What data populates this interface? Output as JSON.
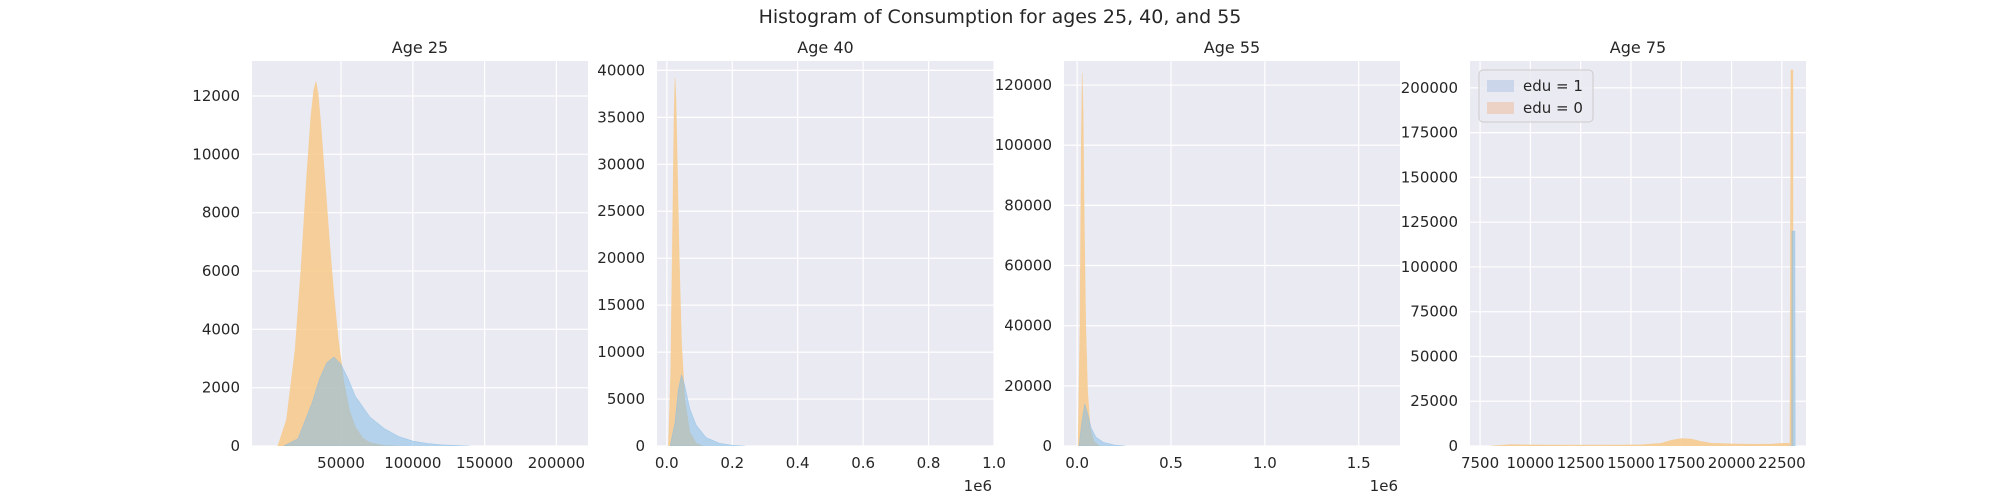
{
  "figure": {
    "title": "Histogram of Consumption for ages 25, 40, and 55",
    "background": "#ffffff",
    "axes_facecolor": "#eaeaf2",
    "grid_color": "#ffffff"
  },
  "legend": {
    "placement": "upper-left",
    "entries": [
      {
        "label": "edu = 1",
        "color": "#b8c8e6"
      },
      {
        "label": "edu = 0",
        "color": "#ecc2a6"
      }
    ]
  },
  "chart_data": [
    {
      "type": "bar",
      "chart_subtype": "overlaid-histogram",
      "title": "Age 25",
      "xlim": [
        -12000,
        222000
      ],
      "ylim": [
        0,
        13200
      ],
      "xticks": [
        50000,
        100000,
        150000,
        200000
      ],
      "xtick_labels": [
        "50000",
        "100000",
        "150000",
        "200000"
      ],
      "yticks": [
        0,
        2000,
        4000,
        6000,
        8000,
        10000,
        12000
      ],
      "ytick_labels": [
        "0",
        "2000",
        "4000",
        "6000",
        "8000",
        "10000",
        "12000"
      ],
      "offset_label": "",
      "grid": true,
      "series": [
        {
          "name": "edu = 1",
          "color": "#87bde6",
          "x": [
            10000,
            20000,
            30000,
            35000,
            40000,
            45000,
            50000,
            55000,
            60000,
            70000,
            80000,
            90000,
            100000,
            110000,
            120000,
            140000
          ],
          "y": [
            0,
            250,
            1500,
            2300,
            2850,
            3050,
            2800,
            2300,
            1700,
            1000,
            600,
            330,
            170,
            90,
            40,
            0
          ]
        },
        {
          "name": "edu = 0",
          "color": "#f7c98a",
          "x": [
            6000,
            12000,
            18000,
            22000,
            26000,
            29000,
            31000,
            32500,
            34000,
            36000,
            39000,
            42000,
            45000,
            48000,
            52000,
            56000,
            60000,
            65000,
            70000,
            80000,
            90000
          ],
          "y": [
            0,
            900,
            3300,
            6000,
            9200,
            11300,
            12200,
            12500,
            12100,
            11000,
            9000,
            7000,
            5200,
            3700,
            2200,
            1200,
            650,
            280,
            120,
            20,
            0
          ]
        }
      ]
    },
    {
      "type": "bar",
      "chart_subtype": "overlaid-histogram",
      "title": "Age 40",
      "xlim": [
        -30000,
        1000000
      ],
      "ylim": [
        0,
        41000
      ],
      "xticks": [
        0,
        200000,
        400000,
        600000,
        800000,
        1000000
      ],
      "xtick_labels": [
        "0.0",
        "0.2",
        "0.4",
        "0.6",
        "0.8",
        "1.0"
      ],
      "yticks": [
        0,
        5000,
        10000,
        15000,
        20000,
        25000,
        30000,
        35000,
        40000
      ],
      "ytick_labels": [
        "0",
        "5000",
        "10000",
        "15000",
        "20000",
        "25000",
        "30000",
        "35000",
        "40000"
      ],
      "offset_label": "1e6",
      "grid": true,
      "series": [
        {
          "name": "edu = 1",
          "color": "#87bde6",
          "x": [
            10000,
            25000,
            35000,
            45000,
            55000,
            70000,
            90000,
            120000,
            160000,
            200000,
            240000
          ],
          "y": [
            0,
            2500,
            6000,
            7600,
            6400,
            4000,
            2200,
            900,
            300,
            80,
            0
          ]
        },
        {
          "name": "edu = 0",
          "color": "#f7c98a",
          "x": [
            5000,
            12000,
            18000,
            22000,
            25000,
            28000,
            32000,
            38000,
            45000,
            55000,
            70000,
            90000,
            110000
          ],
          "y": [
            0,
            8000,
            24000,
            35000,
            39200,
            37000,
            30000,
            20000,
            11000,
            5000,
            1500,
            300,
            0
          ]
        }
      ]
    },
    {
      "type": "bar",
      "chart_subtype": "overlaid-histogram",
      "title": "Age 55",
      "xlim": [
        -70000,
        1720000
      ],
      "ylim": [
        0,
        128000
      ],
      "xticks": [
        0,
        500000,
        1000000,
        1500000
      ],
      "xtick_labels": [
        "0.0",
        "0.5",
        "1.0",
        "1.5"
      ],
      "yticks": [
        0,
        20000,
        40000,
        60000,
        80000,
        100000,
        120000
      ],
      "ytick_labels": [
        "0",
        "20000",
        "40000",
        "60000",
        "80000",
        "100000",
        "120000"
      ],
      "offset_label": "1e6",
      "grid": true,
      "series": [
        {
          "name": "edu = 1",
          "color": "#87bde6",
          "x": [
            10000,
            25000,
            40000,
            55000,
            75000,
            100000,
            140000,
            200000,
            260000
          ],
          "y": [
            0,
            8000,
            14000,
            11000,
            6000,
            3000,
            1200,
            300,
            0
          ]
        },
        {
          "name": "edu = 0",
          "color": "#f7c98a",
          "x": [
            5000,
            15000,
            22000,
            27000,
            32000,
            38000,
            46000,
            56000,
            70000,
            90000,
            120000
          ],
          "y": [
            0,
            40000,
            100000,
            124000,
            110000,
            75000,
            40000,
            18000,
            6000,
            1500,
            0
          ]
        }
      ]
    },
    {
      "type": "bar",
      "chart_subtype": "overlaid-histogram",
      "title": "Age 75",
      "xlim": [
        7000,
        23700
      ],
      "ylim": [
        0,
        215000
      ],
      "xticks": [
        7500,
        10000,
        12500,
        15000,
        17500,
        20000,
        22500
      ],
      "xtick_labels": [
        "7500",
        "10000",
        "12500",
        "15000",
        "17500",
        "20000",
        "22500"
      ],
      "yticks": [
        0,
        25000,
        50000,
        75000,
        100000,
        125000,
        150000,
        175000,
        200000
      ],
      "ytick_labels": [
        "0",
        "25000",
        "50000",
        "75000",
        "100000",
        "125000",
        "150000",
        "175000",
        "200000"
      ],
      "offset_label": "",
      "grid": true,
      "series": [
        {
          "name": "edu = 1",
          "color": "#87bde6",
          "x": [
            22800,
            22990,
            23000,
            23150,
            23160
          ],
          "y": [
            0,
            0,
            120000,
            120000,
            0
          ]
        },
        {
          "name": "edu = 0",
          "color": "#f7c98a",
          "x": [
            8000,
            9000,
            10000,
            12000,
            14000,
            15500,
            16500,
            17000,
            17500,
            18000,
            18500,
            19000,
            20000,
            21000,
            22000,
            22500,
            22900,
            22950,
            23050,
            23060
          ],
          "y": [
            0,
            800,
            600,
            500,
            500,
            700,
            1500,
            3200,
            4200,
            3900,
            2500,
            1600,
            1200,
            1000,
            1100,
            1500,
            1500,
            210000,
            210000,
            0
          ]
        }
      ]
    }
  ]
}
